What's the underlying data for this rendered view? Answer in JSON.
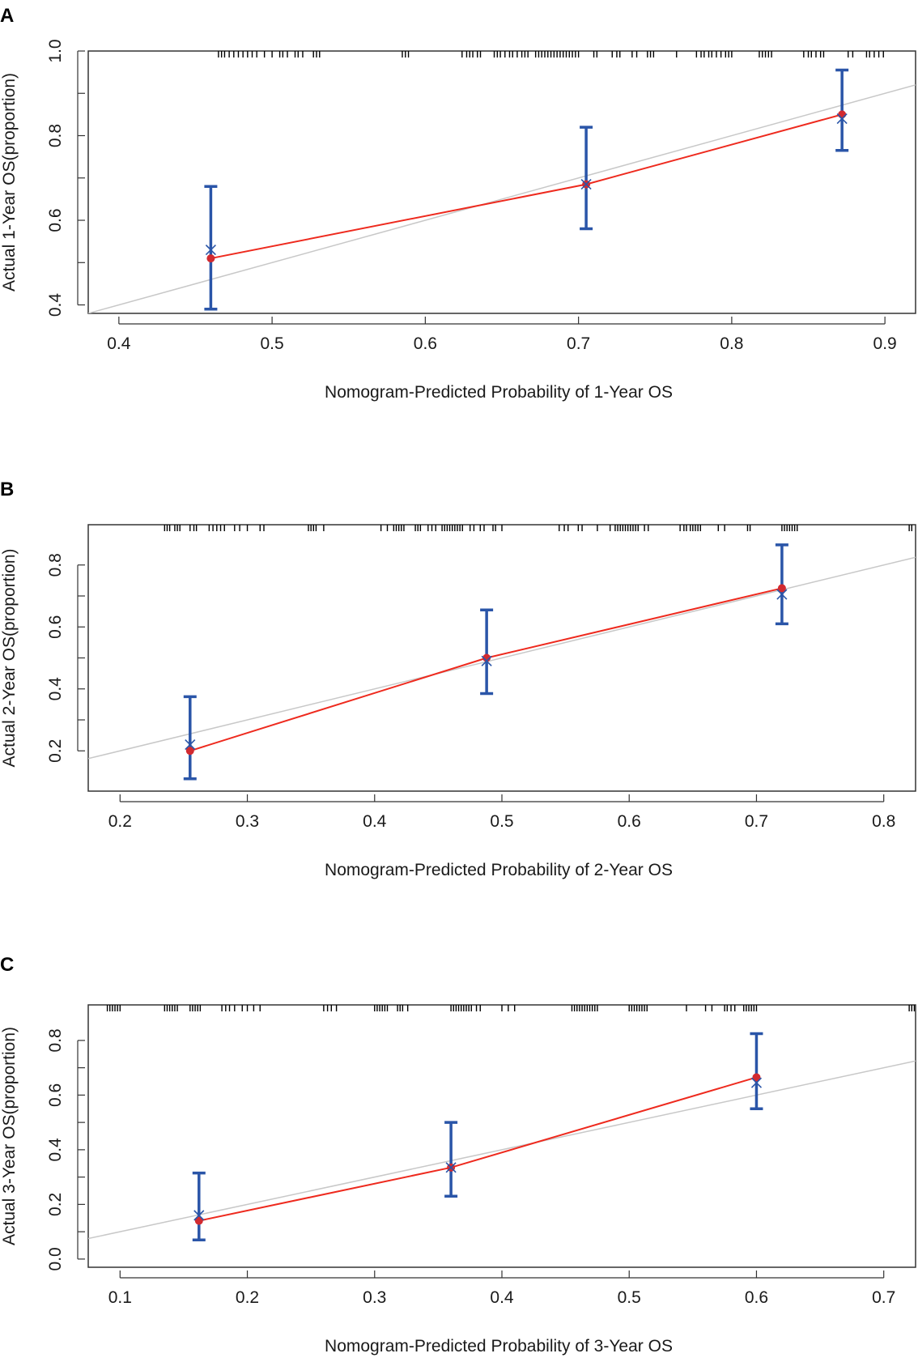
{
  "chart_data": [
    {
      "type": "scatter",
      "panel_label": "A",
      "xlabel": "Nomogram-Predicted Probability of 1-Year OS",
      "ylabel": "Actual 1-Year OS(proportion)",
      "xlim": [
        0.38,
        0.92
      ],
      "ylim": [
        0.38,
        1.0
      ],
      "xticks": [
        0.4,
        0.5,
        0.6,
        0.7,
        0.8,
        0.9
      ],
      "xtick_labels": [
        "0.4",
        "0.5",
        "0.6",
        "0.7",
        "0.8",
        "0.9"
      ],
      "yticks": [
        0.4,
        0.6,
        0.8,
        1.0
      ],
      "ytick_labels": [
        "0.4",
        "0.6",
        "0.8",
        "1.0"
      ],
      "yminor": [
        0.5,
        0.7,
        0.9
      ],
      "ideal_line": true,
      "points": [
        {
          "x": 0.46,
          "observed": 0.51,
          "corrected": 0.53,
          "lower": 0.39,
          "upper": 0.68
        },
        {
          "x": 0.705,
          "observed": 0.685,
          "corrected": 0.685,
          "lower": 0.58,
          "upper": 0.82
        },
        {
          "x": 0.872,
          "observed": 0.85,
          "corrected": 0.84,
          "lower": 0.765,
          "upper": 0.955
        }
      ],
      "rug": [
        0.465,
        0.467,
        0.469,
        0.472,
        0.475,
        0.478,
        0.481,
        0.484,
        0.487,
        0.49,
        0.495,
        0.5,
        0.505,
        0.507,
        0.51,
        0.515,
        0.517,
        0.52,
        0.527,
        0.529,
        0.531,
        0.585,
        0.587,
        0.589,
        0.624,
        0.627,
        0.629,
        0.631,
        0.634,
        0.636,
        0.645,
        0.647,
        0.649,
        0.652,
        0.655,
        0.657,
        0.66,
        0.663,
        0.665,
        0.667,
        0.672,
        0.674,
        0.676,
        0.678,
        0.68,
        0.682,
        0.684,
        0.686,
        0.688,
        0.69,
        0.692,
        0.694,
        0.696,
        0.698,
        0.7,
        0.71,
        0.712,
        0.722,
        0.725,
        0.727,
        0.735,
        0.738,
        0.745,
        0.747,
        0.749,
        0.764,
        0.777,
        0.78,
        0.782,
        0.785,
        0.787,
        0.79,
        0.793,
        0.796,
        0.798,
        0.8,
        0.818,
        0.82,
        0.822,
        0.824,
        0.826,
        0.847,
        0.85,
        0.852,
        0.855,
        0.858,
        0.86,
        0.876,
        0.879,
        0.888,
        0.89,
        0.893,
        0.896,
        0.899
      ]
    },
    {
      "type": "scatter",
      "panel_label": "B",
      "xlabel": "Nomogram-Predicted Probability of 2-Year OS",
      "ylabel": "Actual 2-Year OS(proportion)",
      "xlim": [
        0.175,
        0.825
      ],
      "ylim": [
        0.07,
        0.93
      ],
      "xticks": [
        0.2,
        0.3,
        0.4,
        0.5,
        0.6,
        0.7,
        0.8
      ],
      "xtick_labels": [
        "0.2",
        "0.3",
        "0.4",
        "0.5",
        "0.6",
        "0.7",
        "0.8"
      ],
      "yticks": [
        0.2,
        0.4,
        0.6,
        0.8
      ],
      "ytick_labels": [
        "0.2",
        "0.4",
        "0.6",
        "0.8"
      ],
      "yminor": [
        0.3,
        0.5,
        0.7
      ],
      "ideal_line": true,
      "points": [
        {
          "x": 0.255,
          "observed": 0.2,
          "corrected": 0.22,
          "lower": 0.11,
          "upper": 0.375
        },
        {
          "x": 0.488,
          "observed": 0.5,
          "corrected": 0.49,
          "lower": 0.385,
          "upper": 0.655
        },
        {
          "x": 0.72,
          "observed": 0.725,
          "corrected": 0.705,
          "lower": 0.61,
          "upper": 0.865
        }
      ],
      "rug": [
        0.235,
        0.237,
        0.239,
        0.243,
        0.245,
        0.247,
        0.255,
        0.258,
        0.26,
        0.27,
        0.273,
        0.276,
        0.279,
        0.282,
        0.29,
        0.294,
        0.3,
        0.31,
        0.313,
        0.348,
        0.35,
        0.352,
        0.354,
        0.36,
        0.405,
        0.41,
        0.415,
        0.417,
        0.419,
        0.421,
        0.423,
        0.432,
        0.434,
        0.436,
        0.442,
        0.445,
        0.448,
        0.453,
        0.455,
        0.457,
        0.459,
        0.461,
        0.463,
        0.465,
        0.467,
        0.469,
        0.475,
        0.478,
        0.483,
        0.486,
        0.493,
        0.495,
        0.5,
        0.545,
        0.549,
        0.552,
        0.56,
        0.563,
        0.575,
        0.585,
        0.589,
        0.591,
        0.593,
        0.595,
        0.597,
        0.599,
        0.601,
        0.603,
        0.605,
        0.607,
        0.612,
        0.615,
        0.64,
        0.643,
        0.645,
        0.648,
        0.65,
        0.652,
        0.654,
        0.656,
        0.67,
        0.675,
        0.693,
        0.695,
        0.72,
        0.722,
        0.724,
        0.726,
        0.728,
        0.73,
        0.732,
        0.82,
        0.822
      ]
    },
    {
      "type": "scatter",
      "panel_label": "C",
      "xlabel": "Nomogram-Predicted Probability of 3-Year OS",
      "ylabel": "Actual 3-Year OS(proportion)",
      "xlim": [
        0.075,
        0.725
      ],
      "ylim": [
        -0.03,
        0.93
      ],
      "xticks": [
        0.1,
        0.2,
        0.3,
        0.4,
        0.5,
        0.6,
        0.7
      ],
      "xtick_labels": [
        "0.1",
        "0.2",
        "0.3",
        "0.4",
        "0.5",
        "0.6",
        "0.7"
      ],
      "yticks": [
        0.0,
        0.2,
        0.4,
        0.6,
        0.8
      ],
      "ytick_labels": [
        "0.0",
        "0.2",
        "0.4",
        "0.6",
        "0.8"
      ],
      "yminor": [
        0.1,
        0.3,
        0.5,
        0.7
      ],
      "ideal_line": true,
      "points": [
        {
          "x": 0.162,
          "observed": 0.14,
          "corrected": 0.16,
          "lower": 0.07,
          "upper": 0.315
        },
        {
          "x": 0.36,
          "observed": 0.335,
          "corrected": 0.335,
          "lower": 0.23,
          "upper": 0.5
        },
        {
          "x": 0.6,
          "observed": 0.665,
          "corrected": 0.645,
          "lower": 0.55,
          "upper": 0.825
        }
      ],
      "rug": [
        0.09,
        0.092,
        0.094,
        0.096,
        0.098,
        0.1,
        0.135,
        0.137,
        0.139,
        0.141,
        0.143,
        0.145,
        0.155,
        0.157,
        0.159,
        0.161,
        0.163,
        0.18,
        0.183,
        0.186,
        0.19,
        0.196,
        0.2,
        0.205,
        0.21,
        0.26,
        0.263,
        0.266,
        0.27,
        0.3,
        0.302,
        0.304,
        0.306,
        0.308,
        0.31,
        0.318,
        0.32,
        0.322,
        0.326,
        0.36,
        0.362,
        0.364,
        0.366,
        0.368,
        0.37,
        0.372,
        0.374,
        0.376,
        0.38,
        0.383,
        0.4,
        0.405,
        0.41,
        0.455,
        0.457,
        0.459,
        0.461,
        0.463,
        0.465,
        0.467,
        0.469,
        0.471,
        0.473,
        0.475,
        0.5,
        0.502,
        0.504,
        0.506,
        0.508,
        0.51,
        0.512,
        0.514,
        0.545,
        0.56,
        0.565,
        0.575,
        0.577,
        0.58,
        0.583,
        0.59,
        0.592,
        0.594,
        0.596,
        0.598,
        0.6,
        0.72,
        0.722,
        0.724
      ]
    }
  ]
}
